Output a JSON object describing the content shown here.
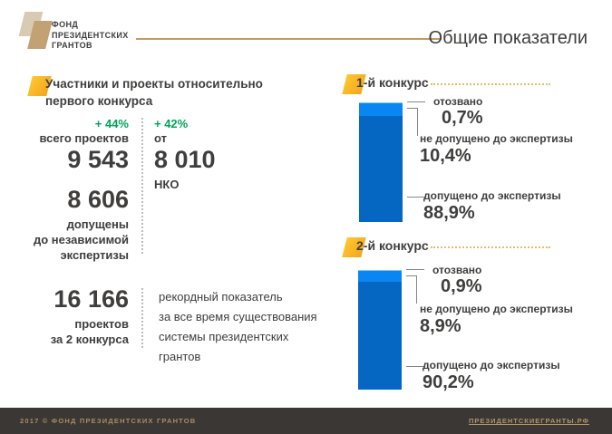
{
  "brand": {
    "logo_line1": "ФОНД",
    "logo_line2": "ПРЕЗИДЕНТСКИХ",
    "logo_line3": "ГРАНТОВ"
  },
  "header": {
    "title": "Общие показатели"
  },
  "left_section": {
    "title_line1": "Участники и проекты относительно",
    "title_line2": "первого конкурса",
    "stats": {
      "projects_delta": "+ 44%",
      "projects_label": "всего проектов",
      "projects_total": "9 543",
      "admitted_total": "8 606",
      "admitted_line1": "допущены",
      "admitted_line2": "до независимой",
      "admitted_line3": "экспертизы",
      "nko_delta": "+ 42%",
      "nko_from": "от",
      "nko_total": "8 010",
      "nko_label": "НКО"
    },
    "summary": {
      "total": "16 166",
      "label_line1": "проектов",
      "label_line2": "за 2 конкурса",
      "note_line1": "рекордный показатель",
      "note_line2": "за все время существования",
      "note_line3": "системы президентских",
      "note_line4": "грантов"
    }
  },
  "chart_data": [
    {
      "type": "bar",
      "title": "1-й конкурс",
      "stacked": true,
      "unit": "%",
      "orientation": "single-vertical-stacked-bar",
      "categories": [
        "отозвано",
        "не допущено до экспертизы",
        "допущено до экспертизы"
      ],
      "values": [
        0.7,
        10.4,
        88.9
      ],
      "value_labels": [
        "0,7%",
        "10,4%",
        "88,9%"
      ],
      "colors": [
        "#6fd0e8",
        "#0a86f2",
        "#0667c2"
      ],
      "ylim": [
        0,
        100
      ],
      "legend_position": "right-callouts",
      "grid": false
    },
    {
      "type": "bar",
      "title": "2-й конкурс",
      "stacked": true,
      "unit": "%",
      "orientation": "single-vertical-stacked-bar",
      "categories": [
        "отозвано",
        "не допущено до экспертизы",
        "допущено до экспертизы"
      ],
      "values": [
        0.9,
        8.9,
        90.2
      ],
      "value_labels": [
        "0,9%",
        "8,9%",
        "90,2%"
      ],
      "colors": [
        "#6fd0e8",
        "#0a86f2",
        "#0667c2"
      ],
      "ylim": [
        0,
        100
      ],
      "legend_position": "right-callouts",
      "grid": false
    }
  ],
  "footer": {
    "copyright": "2017 © ФОНД ПРЕЗИДЕНТСКИХ ГРАНТОВ",
    "site": "ПРЕЗИДЕНТСКИЕГРАНТЫ.РФ"
  },
  "colors": {
    "accent_gold": "#f5ad20",
    "header_line_tan": "#c9995b",
    "delta_green": "#00a45a",
    "text_dark": "#3f3e3d",
    "footer_bg": "#3b3734",
    "footer_text": "#a98d62",
    "bar_withdrawn": "#6fd0e8",
    "bar_not_admitted": "#0a86f2",
    "bar_admitted": "#0667c2"
  }
}
